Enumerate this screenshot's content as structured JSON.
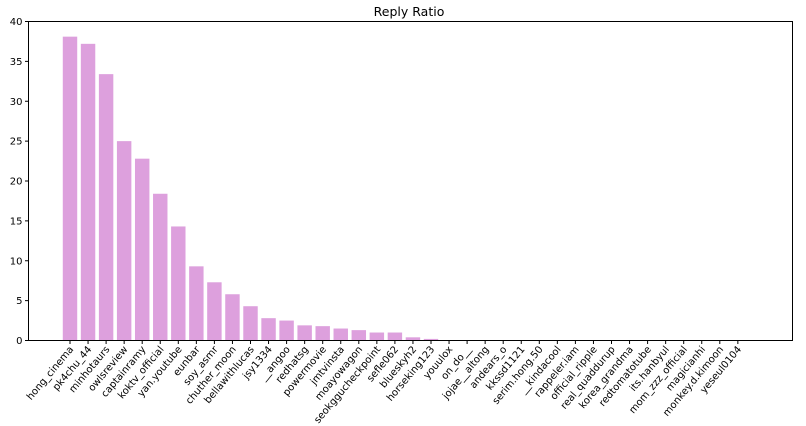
{
  "chart_data": {
    "type": "bar",
    "title": "Reply Ratio",
    "xlabel": "",
    "ylabel": "",
    "ylim": [
      0,
      40
    ],
    "yticks": [
      0,
      5,
      10,
      15,
      20,
      25,
      30,
      35,
      40
    ],
    "grid": false,
    "bar_color": "#dda0dd",
    "categories": [
      "hong_cinema",
      "pk4chu_44",
      "minhotaurs",
      "owlsreview",
      "captainramy",
      "koktv_official",
      "yan.youtube",
      "eunbar",
      "soy_asmr",
      "chuther_moon",
      "bellawithlucas",
      "jsy1334",
      "__angoo",
      "redhatsg",
      "powermovie",
      "jmtvinsta",
      "moayowagon",
      "seokggucheckpoint",
      "sefle062",
      "blueskyh2",
      "horseking123",
      "youulox",
      "on_do__",
      "jojae__altong",
      "andears_o",
      "kkssd1121",
      "serim.hong.50",
      "__kindacool",
      "rappeler.iam",
      "official_ripple",
      "real_quaddurup",
      "korea_grandma",
      "redtomatotube",
      "its.hanbyul",
      "mom_zzz_official",
      "magicianhi",
      "monkey.d.kimoon",
      "yeseul0104"
    ],
    "values": [
      38.1,
      37.2,
      33.4,
      25.0,
      22.8,
      18.4,
      14.3,
      9.3,
      7.3,
      5.8,
      4.3,
      2.8,
      2.5,
      1.9,
      1.8,
      1.5,
      1.3,
      1.0,
      1.0,
      0.4,
      0.2,
      0.05,
      0,
      0,
      0,
      0,
      0,
      0,
      0,
      0,
      0,
      0,
      0,
      0,
      0,
      0,
      0,
      0
    ]
  }
}
